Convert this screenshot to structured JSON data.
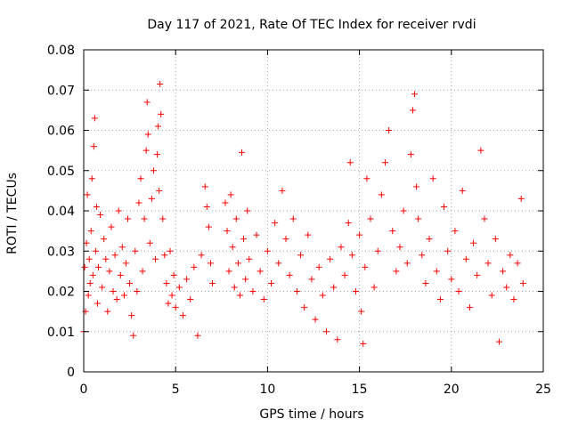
{
  "chart_data": {
    "type": "scatter",
    "title": "Day 117 of 2021, Rate Of TEC Index for receiver rvdi",
    "xlabel": "GPS time / hours",
    "ylabel": "ROTI / TECUs",
    "xlim": [
      0,
      25
    ],
    "ylim": [
      0,
      0.08
    ],
    "x_ticks": [
      0,
      5,
      10,
      15,
      20,
      25
    ],
    "x_tick_labels": [
      "0",
      "5",
      "10",
      "15",
      "20",
      "25"
    ],
    "y_ticks": [
      0,
      0.01,
      0.02,
      0.03,
      0.04,
      0.05,
      0.06,
      0.07,
      0.08
    ],
    "y_tick_labels": [
      "0",
      "0.01",
      "0.02",
      "0.03",
      "0.04",
      "0.05",
      "0.06",
      "0.07",
      "0.08"
    ],
    "grid": true,
    "marker": "+",
    "color": "#ff0000",
    "series": [
      {
        "name": "ROTI",
        "points": [
          [
            0.0,
            0.01
          ],
          [
            0.05,
            0.026
          ],
          [
            0.1,
            0.015
          ],
          [
            0.15,
            0.032
          ],
          [
            0.2,
            0.044
          ],
          [
            0.25,
            0.019
          ],
          [
            0.3,
            0.028
          ],
          [
            0.35,
            0.022
          ],
          [
            0.4,
            0.035
          ],
          [
            0.45,
            0.048
          ],
          [
            0.5,
            0.024
          ],
          [
            0.55,
            0.056
          ],
          [
            0.6,
            0.063
          ],
          [
            0.65,
            0.03
          ],
          [
            0.7,
            0.041
          ],
          [
            0.75,
            0.017
          ],
          [
            0.8,
            0.026
          ],
          [
            0.9,
            0.039
          ],
          [
            1.0,
            0.021
          ],
          [
            1.1,
            0.033
          ],
          [
            1.2,
            0.028
          ],
          [
            1.3,
            0.015
          ],
          [
            1.4,
            0.025
          ],
          [
            1.5,
            0.036
          ],
          [
            1.6,
            0.02
          ],
          [
            1.7,
            0.029
          ],
          [
            1.8,
            0.018
          ],
          [
            1.9,
            0.04
          ],
          [
            2.0,
            0.024
          ],
          [
            2.1,
            0.031
          ],
          [
            2.2,
            0.019
          ],
          [
            2.3,
            0.027
          ],
          [
            2.4,
            0.038
          ],
          [
            2.5,
            0.022
          ],
          [
            2.6,
            0.014
          ],
          [
            2.7,
            0.009
          ],
          [
            2.8,
            0.03
          ],
          [
            2.9,
            0.02
          ],
          [
            3.0,
            0.042
          ],
          [
            3.1,
            0.048
          ],
          [
            3.2,
            0.025
          ],
          [
            3.3,
            0.038
          ],
          [
            3.4,
            0.055
          ],
          [
            3.45,
            0.067
          ],
          [
            3.5,
            0.059
          ],
          [
            3.6,
            0.032
          ],
          [
            3.7,
            0.043
          ],
          [
            3.8,
            0.05
          ],
          [
            3.9,
            0.028
          ],
          [
            4.0,
            0.054
          ],
          [
            4.05,
            0.061
          ],
          [
            4.1,
            0.045
          ],
          [
            4.15,
            0.0715
          ],
          [
            4.2,
            0.064
          ],
          [
            4.3,
            0.038
          ],
          [
            4.4,
            0.029
          ],
          [
            4.5,
            0.022
          ],
          [
            4.6,
            0.017
          ],
          [
            4.7,
            0.03
          ],
          [
            4.8,
            0.019
          ],
          [
            4.9,
            0.024
          ],
          [
            5.0,
            0.016
          ],
          [
            5.2,
            0.021
          ],
          [
            5.4,
            0.014
          ],
          [
            5.6,
            0.023
          ],
          [
            5.8,
            0.018
          ],
          [
            6.0,
            0.026
          ],
          [
            6.2,
            0.009
          ],
          [
            6.4,
            0.029
          ],
          [
            6.6,
            0.046
          ],
          [
            6.7,
            0.041
          ],
          [
            6.8,
            0.036
          ],
          [
            6.9,
            0.027
          ],
          [
            7.0,
            0.022
          ],
          [
            7.7,
            0.042
          ],
          [
            7.8,
            0.035
          ],
          [
            7.9,
            0.025
          ],
          [
            8.0,
            0.044
          ],
          [
            8.1,
            0.031
          ],
          [
            8.2,
            0.021
          ],
          [
            8.3,
            0.038
          ],
          [
            8.4,
            0.027
          ],
          [
            8.5,
            0.019
          ],
          [
            8.6,
            0.0545
          ],
          [
            8.7,
            0.033
          ],
          [
            8.8,
            0.023
          ],
          [
            8.9,
            0.04
          ],
          [
            9.0,
            0.028
          ],
          [
            9.2,
            0.02
          ],
          [
            9.4,
            0.034
          ],
          [
            9.6,
            0.025
          ],
          [
            9.8,
            0.018
          ],
          [
            10.0,
            0.03
          ],
          [
            10.2,
            0.022
          ],
          [
            10.4,
            0.037
          ],
          [
            10.6,
            0.027
          ],
          [
            10.8,
            0.045
          ],
          [
            11.0,
            0.033
          ],
          [
            11.2,
            0.024
          ],
          [
            11.4,
            0.038
          ],
          [
            11.6,
            0.02
          ],
          [
            11.8,
            0.029
          ],
          [
            12.0,
            0.016
          ],
          [
            12.2,
            0.034
          ],
          [
            12.4,
            0.023
          ],
          [
            12.6,
            0.013
          ],
          [
            12.8,
            0.026
          ],
          [
            13.0,
            0.019
          ],
          [
            13.2,
            0.01
          ],
          [
            13.4,
            0.028
          ],
          [
            13.6,
            0.021
          ],
          [
            13.8,
            0.008
          ],
          [
            14.0,
            0.031
          ],
          [
            14.2,
            0.024
          ],
          [
            14.4,
            0.037
          ],
          [
            14.5,
            0.052
          ],
          [
            14.6,
            0.029
          ],
          [
            14.8,
            0.02
          ],
          [
            15.0,
            0.034
          ],
          [
            15.1,
            0.015
          ],
          [
            15.2,
            0.007
          ],
          [
            15.3,
            0.026
          ],
          [
            15.4,
            0.048
          ],
          [
            15.6,
            0.038
          ],
          [
            15.8,
            0.021
          ],
          [
            16.0,
            0.03
          ],
          [
            16.2,
            0.044
          ],
          [
            16.4,
            0.052
          ],
          [
            16.6,
            0.06
          ],
          [
            16.8,
            0.035
          ],
          [
            17.0,
            0.025
          ],
          [
            17.2,
            0.031
          ],
          [
            17.4,
            0.04
          ],
          [
            17.6,
            0.027
          ],
          [
            17.8,
            0.054
          ],
          [
            17.9,
            0.065
          ],
          [
            18.0,
            0.069
          ],
          [
            18.1,
            0.046
          ],
          [
            18.2,
            0.038
          ],
          [
            18.4,
            0.029
          ],
          [
            18.6,
            0.022
          ],
          [
            18.8,
            0.033
          ],
          [
            19.0,
            0.048
          ],
          [
            19.2,
            0.025
          ],
          [
            19.4,
            0.018
          ],
          [
            19.6,
            0.041
          ],
          [
            19.8,
            0.03
          ],
          [
            20.0,
            0.023
          ],
          [
            20.2,
            0.035
          ],
          [
            20.4,
            0.02
          ],
          [
            20.6,
            0.045
          ],
          [
            20.8,
            0.028
          ],
          [
            21.0,
            0.016
          ],
          [
            21.2,
            0.032
          ],
          [
            21.4,
            0.024
          ],
          [
            21.6,
            0.055
          ],
          [
            21.8,
            0.038
          ],
          [
            22.0,
            0.027
          ],
          [
            22.2,
            0.019
          ],
          [
            22.4,
            0.033
          ],
          [
            22.6,
            0.0075
          ],
          [
            22.8,
            0.025
          ],
          [
            23.0,
            0.021
          ],
          [
            23.2,
            0.029
          ],
          [
            23.4,
            0.018
          ],
          [
            23.6,
            0.027
          ],
          [
            23.8,
            0.043
          ],
          [
            23.9,
            0.022
          ]
        ]
      }
    ]
  }
}
